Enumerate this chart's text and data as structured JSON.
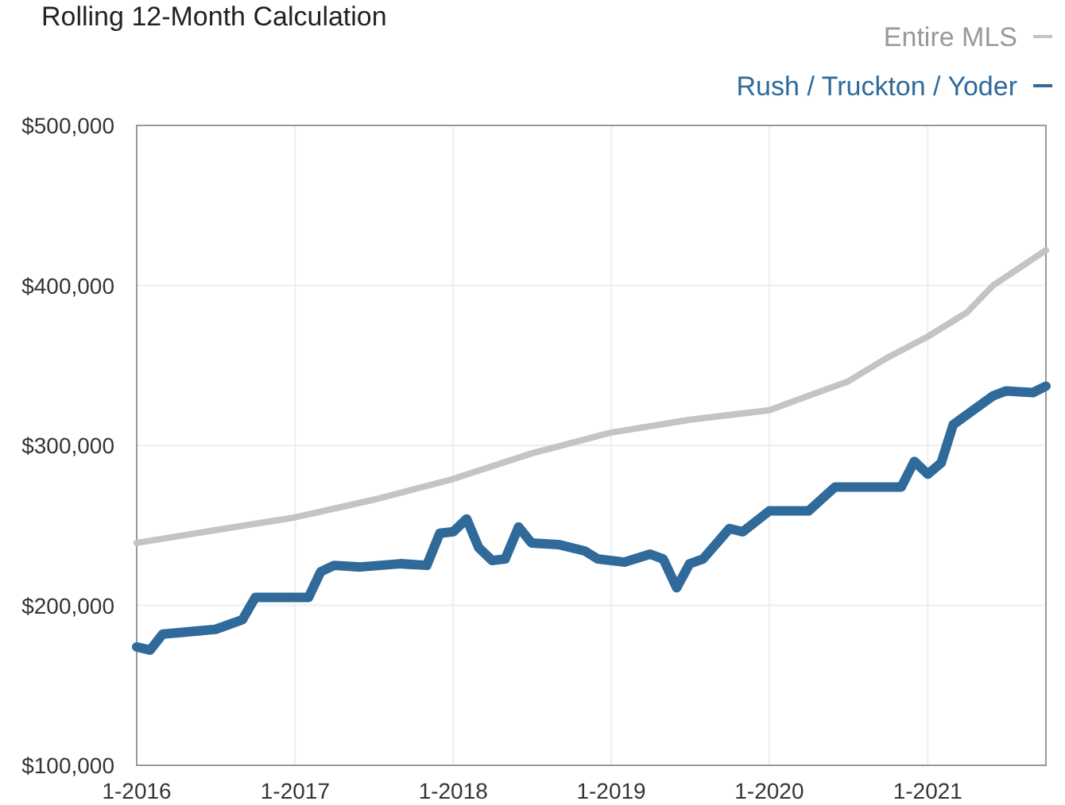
{
  "chart_data": {
    "type": "line",
    "title": "Rolling 12-Month Calculation",
    "legend": "top right",
    "grid": true,
    "line_style": "solid",
    "marker": "none",
    "xlim": [
      "2016-01",
      "2021-10"
    ],
    "xticks": [
      {
        "value": "2016-01",
        "label": "1-2016"
      },
      {
        "value": "2017-01",
        "label": "1-2017"
      },
      {
        "value": "2018-01",
        "label": "1-2018"
      },
      {
        "value": "2019-01",
        "label": "1-2019"
      },
      {
        "value": "2020-01",
        "label": "1-2020"
      },
      {
        "value": "2021-01",
        "label": "1-2021"
      }
    ],
    "ylim": [
      100000,
      500000
    ],
    "yticks": [
      {
        "value": 100000,
        "label": "$100,000"
      },
      {
        "value": 200000,
        "label": "$200,000"
      },
      {
        "value": 300000,
        "label": "$300,000"
      },
      {
        "value": 400000,
        "label": "$400,000"
      },
      {
        "value": 500000,
        "label": "$500,000"
      }
    ],
    "series": [
      {
        "name": "Entire MLS",
        "color": "#c4c4c4",
        "x": [
          "2016-01",
          "2016-07",
          "2017-01",
          "2017-07",
          "2018-01",
          "2018-07",
          "2019-01",
          "2019-07",
          "2020-01",
          "2020-07",
          "2020-10",
          "2021-01",
          "2021-04",
          "2021-06",
          "2021-10"
        ],
        "values": [
          239000,
          247000,
          255000,
          266000,
          279000,
          295000,
          308000,
          316000,
          322000,
          340000,
          355000,
          368000,
          383000,
          400000,
          422000
        ]
      },
      {
        "name": "Rush / Truckton / Yoder",
        "color": "#2f6a9a",
        "x": [
          "2016-01",
          "2016-02",
          "2016-03",
          "2016-07",
          "2016-09",
          "2016-10",
          "2017-02",
          "2017-03",
          "2017-04",
          "2017-06",
          "2017-09",
          "2017-11",
          "2017-12",
          "2018-01",
          "2018-02",
          "2018-03",
          "2018-04",
          "2018-05",
          "2018-06",
          "2018-07",
          "2018-09",
          "2018-11",
          "2018-12",
          "2019-02",
          "2019-04",
          "2019-05",
          "2019-06",
          "2019-07",
          "2019-08",
          "2019-10",
          "2019-11",
          "2020-01",
          "2020-04",
          "2020-06",
          "2020-11",
          "2020-12",
          "2021-01",
          "2021-02",
          "2021-03",
          "2021-06",
          "2021-07",
          "2021-09",
          "2021-10"
        ],
        "values": [
          174000,
          172000,
          182000,
          185000,
          191000,
          205000,
          205000,
          221000,
          225000,
          224000,
          226000,
          225000,
          245000,
          246000,
          254000,
          236000,
          228000,
          229000,
          249000,
          239000,
          238000,
          234000,
          229000,
          227000,
          232000,
          229000,
          211000,
          226000,
          229000,
          248000,
          246000,
          259000,
          259000,
          274000,
          274000,
          290000,
          282000,
          289000,
          313000,
          331000,
          334000,
          333000,
          337000
        ]
      }
    ]
  }
}
